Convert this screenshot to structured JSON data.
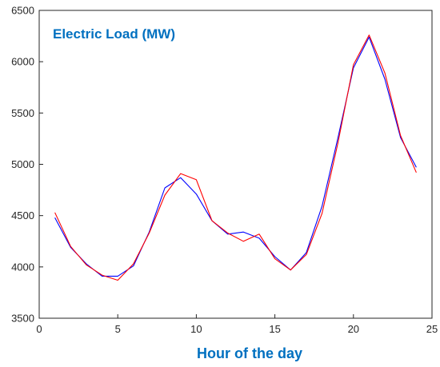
{
  "chart_data": {
    "type": "line",
    "title": "Electric Load (MW)",
    "xlabel": "Hour of the day",
    "ylabel": "",
    "xlim": [
      0,
      25
    ],
    "ylim": [
      3500,
      6500
    ],
    "xticks": [
      0,
      5,
      10,
      15,
      20,
      25
    ],
    "yticks": [
      3500,
      4000,
      4500,
      5000,
      5500,
      6000,
      6500
    ],
    "grid": false,
    "x": [
      1,
      2,
      3,
      4,
      5,
      6,
      7,
      8,
      9,
      10,
      11,
      12,
      13,
      14,
      15,
      16,
      17,
      18,
      19,
      20,
      21,
      22,
      23,
      24
    ],
    "series": [
      {
        "color": "#0000ff",
        "values": [
          4480,
          4190,
          4030,
          3910,
          3910,
          4010,
          4340,
          4770,
          4870,
          4710,
          4450,
          4320,
          4340,
          4280,
          4100,
          3970,
          4140,
          4590,
          5250,
          5940,
          6240,
          5830,
          5260,
          4970
        ]
      },
      {
        "color": "#ff0000",
        "values": [
          4530,
          4200,
          4020,
          3920,
          3870,
          4030,
          4330,
          4700,
          4910,
          4850,
          4450,
          4330,
          4250,
          4320,
          4080,
          3970,
          4120,
          4520,
          5200,
          5970,
          6260,
          5890,
          5280,
          4920
        ]
      }
    ],
    "colors": {
      "title": "#0070c0",
      "xlabel": "#0070c0",
      "axis": "#262626"
    }
  }
}
